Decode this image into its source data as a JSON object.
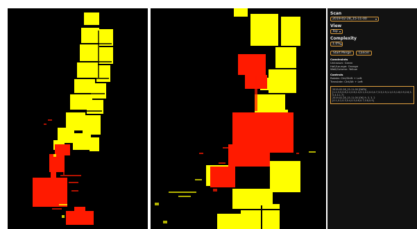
{
  "panel": {
    "scan_label": "Scan",
    "scan_value": "2019-02-28_15-11-00",
    "view_label": "View",
    "view_value": "Top",
    "complexity_label": "Complexity",
    "complexity_value": "1.0%",
    "start_merge_label": "Start Merge",
    "cancel_label": "Cancel",
    "info_lines": [
      {
        "text": "Constraints",
        "head": true
      },
      {
        "text": "Unknown: Green",
        "head": false
      },
      {
        "text": "Hall/Lounge: Orange",
        "head": false
      },
      {
        "text": "Wall/Column: Yellow",
        "head": false
      },
      {
        "text": "Controls",
        "head": true
      },
      {
        "text": "Rotate: Ctrl/Shift + Left",
        "head": false
      },
      {
        "text": "Translate: Ctrl/Alt + Left",
        "head": false
      }
    ],
    "log_lines": [
      "2019-02-28_15-11-00 [DATA]",
      "[1.2,3.5,0.8,2.2,0.6,1.4,5.1,0.2,0.0,4.7,3.3,2.9,1.1,0.5,1.8,0.9,2.6,3.0,4.4,1.7]",
      "2019-02-28_15-11-00 [OK] 9, 3, 3, 2",
      "[0.1,0.2,0.3,0.4,0.5,0.6,0.7,0.8,0.9]"
    ]
  },
  "viewports": {
    "left_name": "before-merge",
    "right_name": "after-merge",
    "colors": {
      "background": "#000000",
      "fixed": "#ffff00",
      "moved": "#ff1a00"
    }
  }
}
